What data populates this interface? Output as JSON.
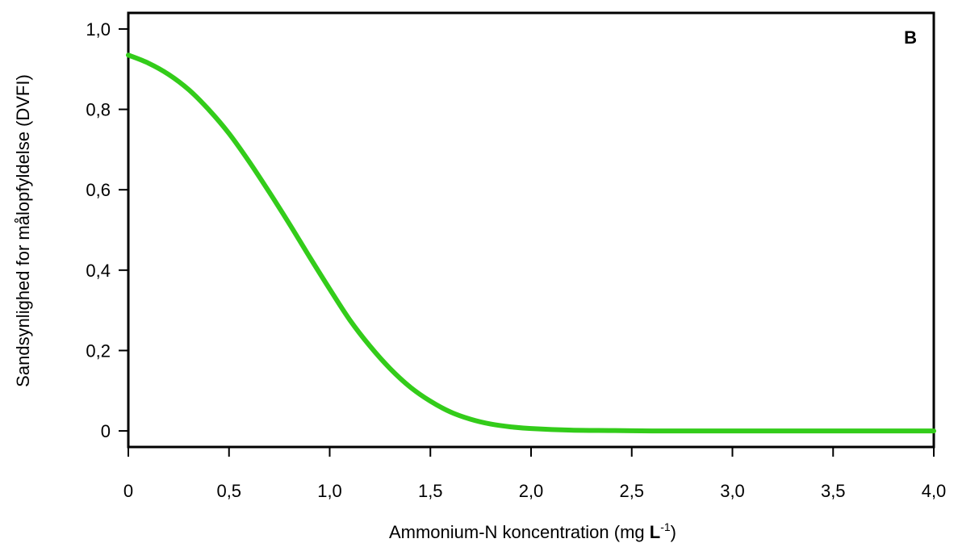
{
  "chart_data": {
    "type": "line",
    "panel_label": "B",
    "xlabel": {
      "text": "Ammonium-N koncentration (mg ",
      "unit_bold": "L",
      "unit_exp": "-1",
      "closing": ")"
    },
    "ylabel": "Sandsynlighed for målopfyldelse (DVFI)",
    "xlim": [
      0,
      4
    ],
    "ylim": [
      -0.04,
      1.04
    ],
    "x_ticks": [
      {
        "value": 0,
        "label": "0"
      },
      {
        "value": 0.5,
        "label": "0,5"
      },
      {
        "value": 1.0,
        "label": "1,0"
      },
      {
        "value": 1.5,
        "label": "1,5"
      },
      {
        "value": 2.0,
        "label": "2,0"
      },
      {
        "value": 2.5,
        "label": "2,5"
      },
      {
        "value": 3.0,
        "label": "3,0"
      },
      {
        "value": 3.5,
        "label": "3,5"
      },
      {
        "value": 4.0,
        "label": "4,0"
      }
    ],
    "y_ticks": [
      {
        "value": 0,
        "label": "0"
      },
      {
        "value": 0.2,
        "label": "0,2"
      },
      {
        "value": 0.4,
        "label": "0,4"
      },
      {
        "value": 0.6,
        "label": "0,6"
      },
      {
        "value": 0.8,
        "label": "0,8"
      },
      {
        "value": 1.0,
        "label": "1,0"
      }
    ],
    "grid": false,
    "series": [
      {
        "color": "#33cc1a",
        "x": [
          0,
          0.1,
          0.2,
          0.3,
          0.4,
          0.5,
          0.6,
          0.7,
          0.8,
          0.9,
          1.0,
          1.1,
          1.2,
          1.3,
          1.4,
          1.5,
          1.6,
          1.7,
          1.8,
          1.9,
          2.0,
          2.2,
          2.4,
          2.6,
          2.8,
          3.0,
          3.5,
          4.0
        ],
        "y": [
          0.935,
          0.915,
          0.887,
          0.849,
          0.799,
          0.74,
          0.67,
          0.594,
          0.515,
          0.433,
          0.353,
          0.276,
          0.211,
          0.155,
          0.109,
          0.074,
          0.047,
          0.029,
          0.017,
          0.01,
          0.006,
          0.002,
          0.001,
          0.0,
          0.0,
          0.0,
          0.0,
          0.0
        ]
      }
    ]
  }
}
